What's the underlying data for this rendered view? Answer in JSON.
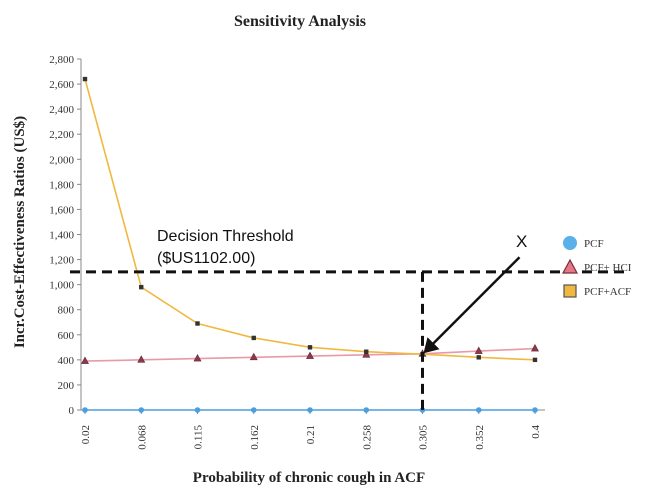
{
  "chart_data": {
    "type": "line",
    "title": "Sensitivity Analysis",
    "xlabel": "Probability of chronic cough in ACF",
    "ylabel": "Incr.Cost-Effectiveness Ratios (US$)",
    "categories": [
      "0.02",
      "0.068",
      "0.115",
      "0.162",
      "0.21",
      "0.258",
      "0.305",
      "0.352",
      "0.4"
    ],
    "ylim": [
      0,
      2800
    ],
    "yticks": [
      "0",
      "200",
      "400",
      "600",
      "800",
      "1,000",
      "1,200",
      "1,400",
      "1,600",
      "1,800",
      "2,000",
      "2,200",
      "2,400",
      "2,600",
      "2,800"
    ],
    "ytick_values": [
      0,
      200,
      400,
      600,
      800,
      1000,
      1200,
      1400,
      1600,
      1800,
      2000,
      2200,
      2400,
      2600,
      2800
    ],
    "grid": false,
    "legend_position": "right",
    "series": [
      {
        "name": "PCF",
        "values": [
          0,
          0,
          0,
          0,
          0,
          0,
          0,
          0,
          0
        ],
        "color": "#4a9fe0",
        "marker": "circle"
      },
      {
        "name": "PCF+ HCI",
        "values": [
          390,
          400,
          410,
          420,
          430,
          440,
          448,
          470,
          490
        ],
        "color": "#e89aa8",
        "marker": "triangle"
      },
      {
        "name": "PCF+ACF",
        "values": [
          2640,
          980,
          690,
          575,
          500,
          465,
          445,
          420,
          400
        ],
        "color": "#f0b840",
        "marker": "square"
      }
    ],
    "threshold": {
      "value": 1102,
      "line1": "Decision Threshold",
      "line2": "($US1102.00)"
    },
    "intersection_x": "0.305",
    "annotation": "X"
  }
}
